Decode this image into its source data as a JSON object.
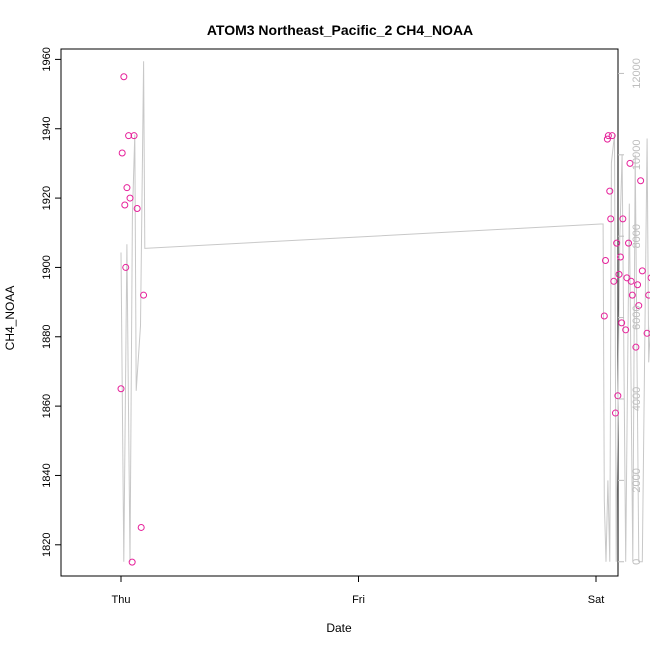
{
  "chart_data": {
    "type": "scatter",
    "title": "ATOM3 Northeast_Pacific_2 CH4_NOAA",
    "xlabel": "Date",
    "ylabel": "CH4_NOAA",
    "x_ticks": [
      "Thu",
      "Fri",
      "Sat"
    ],
    "y_ticks": [
      1820,
      1840,
      1860,
      1880,
      1900,
      1920,
      1940,
      1960
    ],
    "y2_ticks": [
      0,
      2000,
      4000,
      6000,
      8000,
      10000,
      12000
    ],
    "ylim": [
      1811,
      1963
    ],
    "y2lim": [
      -350,
      12600
    ],
    "colors": {
      "points": "#e6209a",
      "line": "#c8c8c8"
    },
    "grid": false,
    "series": [
      {
        "type": "scatter",
        "axis": "left",
        "points": [
          {
            "x": 0.0,
            "y": 1865
          },
          {
            "x": 0.005,
            "y": 1933
          },
          {
            "x": 0.012,
            "y": 1955
          },
          {
            "x": 0.016,
            "y": 1918
          },
          {
            "x": 0.02,
            "y": 1900
          },
          {
            "x": 0.025,
            "y": 1923
          },
          {
            "x": 0.032,
            "y": 1938
          },
          {
            "x": 0.038,
            "y": 1920
          },
          {
            "x": 0.047,
            "y": 1815
          },
          {
            "x": 0.055,
            "y": 1938
          },
          {
            "x": 0.068,
            "y": 1917
          },
          {
            "x": 0.085,
            "y": 1825
          },
          {
            "x": 0.095,
            "y": 1892
          },
          {
            "x": 2.035,
            "y": 1886
          },
          {
            "x": 2.04,
            "y": 1902
          },
          {
            "x": 2.048,
            "y": 1937
          },
          {
            "x": 2.052,
            "y": 1938
          },
          {
            "x": 2.058,
            "y": 1922
          },
          {
            "x": 2.062,
            "y": 1914
          },
          {
            "x": 2.068,
            "y": 1938
          },
          {
            "x": 2.075,
            "y": 1896
          },
          {
            "x": 2.082,
            "y": 1858
          },
          {
            "x": 2.087,
            "y": 1907
          },
          {
            "x": 2.092,
            "y": 1863
          },
          {
            "x": 2.097,
            "y": 1898
          },
          {
            "x": 2.103,
            "y": 1903
          },
          {
            "x": 2.108,
            "y": 1884
          },
          {
            "x": 2.113,
            "y": 1914
          },
          {
            "x": 2.125,
            "y": 1882
          },
          {
            "x": 2.13,
            "y": 1897
          },
          {
            "x": 2.137,
            "y": 1907
          },
          {
            "x": 2.143,
            "y": 1930
          },
          {
            "x": 2.148,
            "y": 1896
          },
          {
            "x": 2.153,
            "y": 1892
          },
          {
            "x": 2.168,
            "y": 1877
          },
          {
            "x": 2.175,
            "y": 1895
          },
          {
            "x": 2.18,
            "y": 1889
          },
          {
            "x": 2.188,
            "y": 1925
          },
          {
            "x": 2.195,
            "y": 1899
          },
          {
            "x": 2.215,
            "y": 1881
          },
          {
            "x": 2.222,
            "y": 1892
          },
          {
            "x": 2.232,
            "y": 1897
          },
          {
            "x": 2.255,
            "y": 1872
          }
        ]
      },
      {
        "type": "line",
        "axis": "right",
        "points": [
          {
            "x": 0.0,
            "y": 7600
          },
          {
            "x": 0.012,
            "y": 0
          },
          {
            "x": 0.025,
            "y": 7800
          },
          {
            "x": 0.038,
            "y": 0
          },
          {
            "x": 0.048,
            "y": 8500
          },
          {
            "x": 0.058,
            "y": 10500
          },
          {
            "x": 0.064,
            "y": 4200
          },
          {
            "x": 0.082,
            "y": 5800
          },
          {
            "x": 0.095,
            "y": 12300
          },
          {
            "x": 0.1,
            "y": 7700
          },
          {
            "x": 2.02,
            "y": 8300
          },
          {
            "x": 2.03,
            "y": 8300
          },
          {
            "x": 2.035,
            "y": 1500
          },
          {
            "x": 2.042,
            "y": 0
          },
          {
            "x": 2.05,
            "y": 2000
          },
          {
            "x": 2.058,
            "y": 0
          },
          {
            "x": 2.065,
            "y": 9800
          },
          {
            "x": 2.078,
            "y": 10500
          },
          {
            "x": 2.085,
            "y": 0
          },
          {
            "x": 2.1,
            "y": 8000
          },
          {
            "x": 2.11,
            "y": 10000
          },
          {
            "x": 2.125,
            "y": 0
          },
          {
            "x": 2.14,
            "y": 8800
          },
          {
            "x": 2.155,
            "y": 0
          },
          {
            "x": 2.165,
            "y": 10000
          },
          {
            "x": 2.18,
            "y": 0
          },
          {
            "x": 2.195,
            "y": 0
          },
          {
            "x": 2.215,
            "y": 10400
          },
          {
            "x": 2.222,
            "y": 4900
          },
          {
            "x": 2.235,
            "y": 6500
          },
          {
            "x": 2.255,
            "y": 12500
          }
        ]
      }
    ]
  }
}
